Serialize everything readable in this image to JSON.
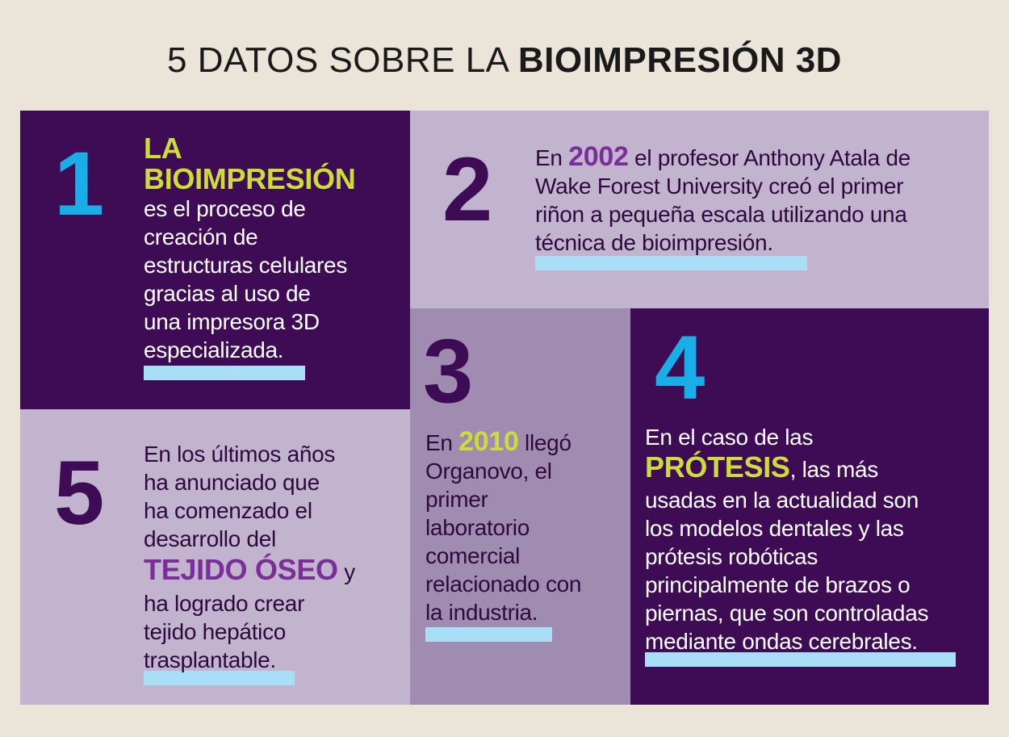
{
  "title": {
    "light": "5 DATOS SOBRE LA ",
    "bold": "BIOIMPRESIÓN 3D"
  },
  "facts": [
    {
      "number": "1",
      "heading_lines": [
        "LA",
        "BIOIMPRESIÓN"
      ],
      "lines": [
        "es el proceso de",
        "creación de",
        "estructuras celulares",
        "gracias al uso de",
        "una impresora 3D",
        "especializada."
      ]
    },
    {
      "number": "2",
      "prefix": "En ",
      "highlight": "2002",
      "line1_rest": " el profesor Anthony Atala de",
      "lines": [
        "Wake Forest University creó el primer",
        "riñon a pequeña escala utilizando una",
        "técnica de bioimpresión."
      ]
    },
    {
      "number": "3",
      "prefix": "En ",
      "highlight": "2010",
      "line1_rest": " llegó",
      "lines": [
        "Organovo, el",
        "primer",
        "laboratorio",
        "comercial",
        "relacionado con",
        "la industria."
      ]
    },
    {
      "number": "4",
      "line1": "En el caso de las",
      "highlight": "PRÓTESIS",
      "line2_rest": ", las más",
      "lines": [
        "usadas en la actualidad son",
        "los modelos dentales y las",
        "prótesis robóticas",
        "principalmente de brazos o",
        "piernas, que son controladas",
        "mediante ondas cerebrales."
      ]
    },
    {
      "number": "5",
      "lines_before": [
        "En los últimos años",
        "ha anunciado que",
        "ha comenzado el",
        "desarrollo del"
      ],
      "highlight": "TEJIDO ÓSEO",
      "highlight_rest": " y",
      "lines": [
        "ha logrado crear",
        "tejido hepático",
        "trasplantable."
      ]
    }
  ],
  "colors": {
    "dark_purple": "#3e0c55",
    "light_lavender": "#c2b4cf",
    "mid_lavender": "#9f8cb0",
    "cyan": "#1aaee8",
    "yellow_green": "#cddd37",
    "purple_accent": "#7a2e97",
    "underline_blue": "#a9def7",
    "background": "#ebe4d9"
  }
}
